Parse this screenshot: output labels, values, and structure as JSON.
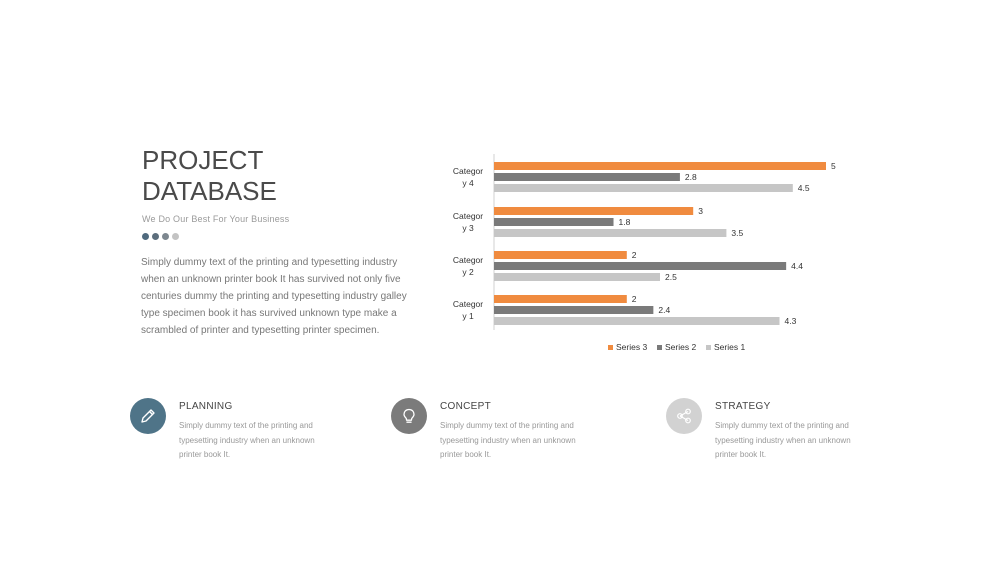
{
  "title": "PROJECT DATABASE",
  "subtitle": "We Do Our Best For Your Business",
  "dots": [
    "#4f6a7e",
    "#5c6e7c",
    "#7d878f",
    "#c3c3c3"
  ],
  "body": "Simply dummy text of the printing and typesetting industry when an unknown printer book It has survived not only five centuries dummy  the printing and typesetting industry galley type specimen book it has survived unknown type make a scrambled of printer and typesetting printer specimen.",
  "chart_data": {
    "type": "bar",
    "orientation": "horizontal",
    "categories": [
      "Categor y 1",
      "Categor y 2",
      "Categor y 3",
      "Categor y 4"
    ],
    "series": [
      {
        "name": "Series 3",
        "color": "#f08b3f",
        "values": [
          2,
          2,
          3,
          5
        ]
      },
      {
        "name": "Series 2",
        "color": "#7a7a7a",
        "values": [
          2.4,
          4.4,
          1.8,
          2.8
        ]
      },
      {
        "name": "Series 1",
        "color": "#c6c6c6",
        "values": [
          4.3,
          2.5,
          3.5,
          4.5
        ]
      }
    ],
    "xlim": [
      0,
      5
    ],
    "grid": false,
    "legend_position": "bottom"
  },
  "features": [
    {
      "title": "PLANNING",
      "text": "Simply dummy text of the printing and typesetting industry when an unknown printer book It.",
      "icon": "pencil-icon",
      "color": "#4f7488"
    },
    {
      "title": "CONCEPT",
      "text": "Simply dummy text of the printing and typesetting industry when an unknown printer book It.",
      "icon": "lightbulb-icon",
      "color": "#7b7b7b"
    },
    {
      "title": "STRATEGY",
      "text": "Simply dummy text of the printing and typesetting industry when an unknown printer book It.",
      "icon": "share-icon",
      "color": "#d2d2d2"
    }
  ]
}
